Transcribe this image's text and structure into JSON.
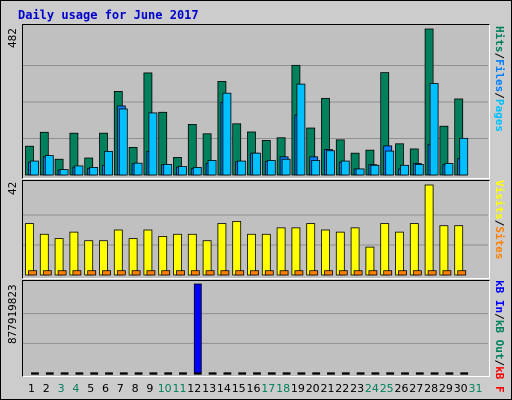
{
  "title": "Daily usage for June 2017",
  "colors": {
    "hits": "#00805c",
    "files": "#0080ff",
    "pages": "#00c0ff",
    "visits": "#ffff00",
    "sites": "#ff8000",
    "kb_in": "#0000ff",
    "kb_out": "#00ff00",
    "kb_f": "#ff0000",
    "weekday_label": "#000000",
    "weekend_label": "#00805c"
  },
  "panels": {
    "hits": {
      "max_label": "482",
      "legend": [
        "Hits",
        "Files",
        "Pages"
      ]
    },
    "visits": {
      "max_label": "42",
      "legend": [
        "Visits",
        "Sites"
      ]
    },
    "kbytes": {
      "max_label": "877919823",
      "legend": [
        "kB In",
        "kB Out",
        "kB F"
      ]
    }
  },
  "legend_separator": "/",
  "chart_data": [
    {
      "type": "bar",
      "title": "Daily usage for June 2017",
      "categories": [
        "1",
        "2",
        "3",
        "4",
        "5",
        "6",
        "7",
        "8",
        "9",
        "10",
        "11",
        "12",
        "13",
        "14",
        "15",
        "16",
        "17",
        "18",
        "19",
        "20",
        "21",
        "22",
        "23",
        "24",
        "25",
        "26",
        "27",
        "28",
        "29",
        "30",
        "31"
      ],
      "weekend": [
        false,
        false,
        true,
        true,
        false,
        false,
        false,
        false,
        false,
        true,
        true,
        false,
        false,
        false,
        false,
        false,
        true,
        true,
        false,
        false,
        false,
        false,
        false,
        true,
        true,
        false,
        false,
        false,
        false,
        false,
        true
      ],
      "ylim": [
        0,
        482
      ],
      "ymax_label": "482",
      "series": [
        {
          "name": "Hits",
          "values": [
            95,
            141,
            52,
            138,
            56,
            138,
            276,
            91,
            337,
            207,
            58,
            167,
            136,
            309,
            169,
            142,
            114,
            123,
            362,
            155,
            253,
            116,
            72,
            82,
            338,
            103,
            86,
            482,
            161,
            251,
            0
          ]
        },
        {
          "name": "Files",
          "values": [
            42,
            60,
            16,
            26,
            22,
            32,
            228,
            37,
            78,
            34,
            26,
            21,
            38,
            240,
            44,
            72,
            44,
            60,
            198,
            60,
            84,
            42,
            20,
            34,
            96,
            20,
            38,
            100,
            34,
            54,
            0
          ]
        },
        {
          "name": "Pages",
          "values": [
            46,
            64,
            18,
            30,
            25,
            78,
            218,
            39,
            205,
            35,
            28,
            25,
            48,
            270,
            46,
            72,
            48,
            52,
            300,
            48,
            80,
            46,
            20,
            32,
            79,
            32,
            35,
            302,
            38,
            121,
            0
          ]
        }
      ]
    },
    {
      "type": "bar",
      "categories": [
        "1",
        "2",
        "3",
        "4",
        "5",
        "6",
        "7",
        "8",
        "9",
        "10",
        "11",
        "12",
        "13",
        "14",
        "15",
        "16",
        "17",
        "18",
        "19",
        "20",
        "21",
        "22",
        "23",
        "24",
        "25",
        "26",
        "27",
        "28",
        "29",
        "30",
        "31"
      ],
      "ylim": [
        0,
        42
      ],
      "ymax_label": "42",
      "series": [
        {
          "name": "Visits",
          "values": [
            24,
            19,
            17,
            20,
            16,
            16,
            21,
            17,
            21,
            18,
            19,
            19,
            16,
            24,
            25,
            19,
            19,
            22,
            22,
            24,
            21,
            20,
            22,
            13,
            24,
            20,
            24,
            42,
            23,
            23,
            0
          ]
        },
        {
          "name": "Sites",
          "values": [
            2,
            2,
            2,
            2,
            2,
            2,
            2,
            2,
            2,
            2,
            2,
            2,
            2,
            2,
            2,
            2,
            2,
            2,
            2,
            2,
            2,
            2,
            2,
            2,
            2,
            2,
            2,
            2,
            2,
            2,
            0
          ]
        }
      ]
    },
    {
      "type": "bar",
      "categories": [
        "1",
        "2",
        "3",
        "4",
        "5",
        "6",
        "7",
        "8",
        "9",
        "10",
        "11",
        "12",
        "13",
        "14",
        "15",
        "16",
        "17",
        "18",
        "19",
        "20",
        "21",
        "22",
        "23",
        "24",
        "25",
        "26",
        "27",
        "28",
        "29",
        "30",
        "31"
      ],
      "ylim": [
        0,
        877919823
      ],
      "ymax_label": "877919823",
      "series": [
        {
          "name": "kB In",
          "values": [
            0,
            0,
            0,
            0,
            0,
            0,
            0,
            0,
            0,
            0,
            0,
            877919823,
            0,
            0,
            0,
            0,
            0,
            0,
            0,
            0,
            0,
            0,
            0,
            0,
            0,
            0,
            0,
            0,
            0,
            0,
            0
          ]
        },
        {
          "name": "kB Out",
          "values": [
            2400000,
            2400000,
            2400000,
            2400000,
            2400000,
            2400000,
            2400000,
            2400000,
            2400000,
            2400000,
            2400000,
            2400000,
            2400000,
            2400000,
            2400000,
            2400000,
            2400000,
            2400000,
            2400000,
            2400000,
            2400000,
            2400000,
            2400000,
            2400000,
            2400000,
            2400000,
            2400000,
            2400000,
            2400000,
            2400000,
            0
          ]
        }
      ]
    }
  ]
}
